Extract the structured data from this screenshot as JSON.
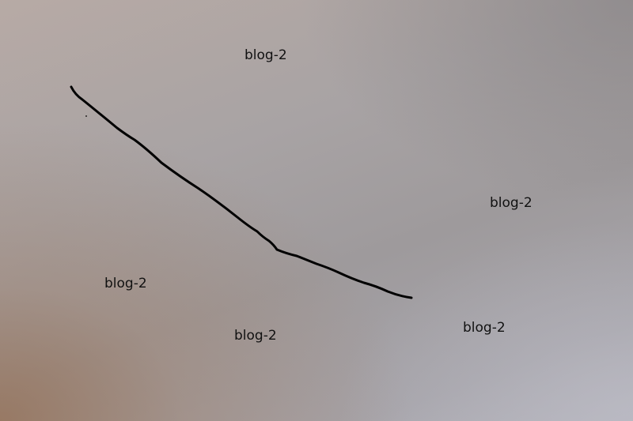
{
  "labels": [
    {
      "text": "blog-2"
    },
    {
      "text": "blog-2"
    },
    {
      "text": "blog-2"
    },
    {
      "text": "blog-2"
    },
    {
      "text": "blog-2"
    }
  ],
  "colors": {
    "text": "#111111",
    "stroke": "#000000"
  }
}
